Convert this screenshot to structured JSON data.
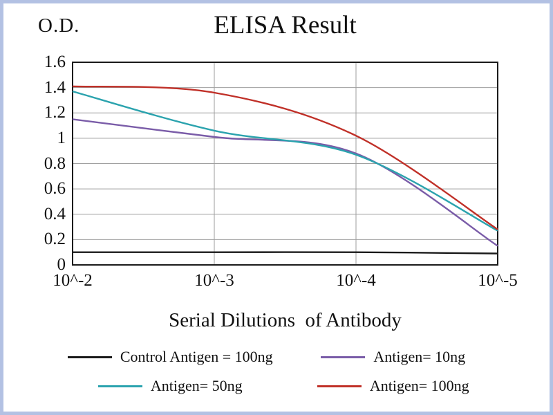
{
  "chart_data": {
    "type": "line",
    "title": "ELISA Result",
    "ylabel": "O.D.",
    "xlabel": "Serial Dilutions  of Antibody",
    "categories": [
      "10^-2",
      "10^-3",
      "10^-4",
      "10^-5"
    ],
    "ylim": [
      0,
      1.6
    ],
    "ytick_step": 0.2,
    "yticks": [
      "0",
      "0.2",
      "0.4",
      "0.6",
      "0.8",
      "1",
      "1.2",
      "1.4",
      "1.6"
    ],
    "grid": true,
    "legend_position": "bottom",
    "series": [
      {
        "name": "Control Antigen = 100ng",
        "color": "#1a1a1a",
        "values": [
          0.1,
          0.1,
          0.1,
          0.09
        ]
      },
      {
        "name": "Antigen= 10ng",
        "color": "#7a5ca8",
        "values": [
          1.15,
          1.01,
          0.88,
          0.15
        ]
      },
      {
        "name": "Antigen= 50ng",
        "color": "#2ba3ae",
        "values": [
          1.37,
          1.06,
          0.87,
          0.27
        ]
      },
      {
        "name": "Antigen= 100ng",
        "color": "#c03028",
        "values": [
          1.41,
          1.36,
          1.02,
          0.28
        ]
      }
    ],
    "colors": {
      "grid": "#9e9e9e",
      "axis": "#1a1a1a",
      "frame_border": "#b3c1e3",
      "background": "#ffffff"
    }
  }
}
